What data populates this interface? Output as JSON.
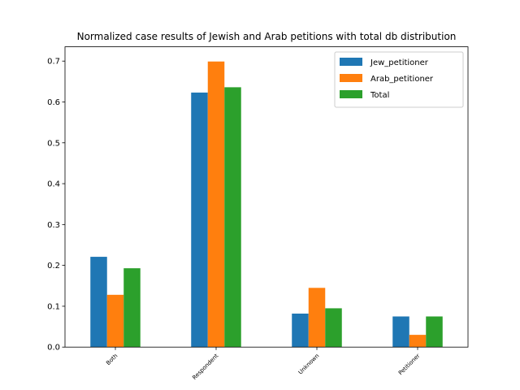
{
  "chart_data": {
    "type": "bar",
    "title": "Normalized case results of Jewish and Arab petitions with total db distribution",
    "xlabel": "",
    "ylabel": "",
    "categories": [
      "Both",
      "Respondent",
      "Unknown",
      "Petitioner"
    ],
    "series": [
      {
        "name": "Jew_petitioner",
        "color": "#1f77b4",
        "values": [
          0.221,
          0.623,
          0.082,
          0.075
        ]
      },
      {
        "name": "Arab_petitioner",
        "color": "#ff7f0e",
        "values": [
          0.128,
          0.699,
          0.145,
          0.03
        ]
      },
      {
        "name": "Total",
        "color": "#2ca02c",
        "values": [
          0.193,
          0.636,
          0.095,
          0.075
        ]
      }
    ],
    "ylim": [
      0,
      0.735
    ],
    "yticks": [
      0.0,
      0.1,
      0.2,
      0.3,
      0.4,
      0.5,
      0.6,
      0.7
    ],
    "ytick_labels": [
      "0.0",
      "0.1",
      "0.2",
      "0.3",
      "0.4",
      "0.5",
      "0.6",
      "0.7"
    ],
    "grid": false,
    "legend_position": "top-right"
  }
}
